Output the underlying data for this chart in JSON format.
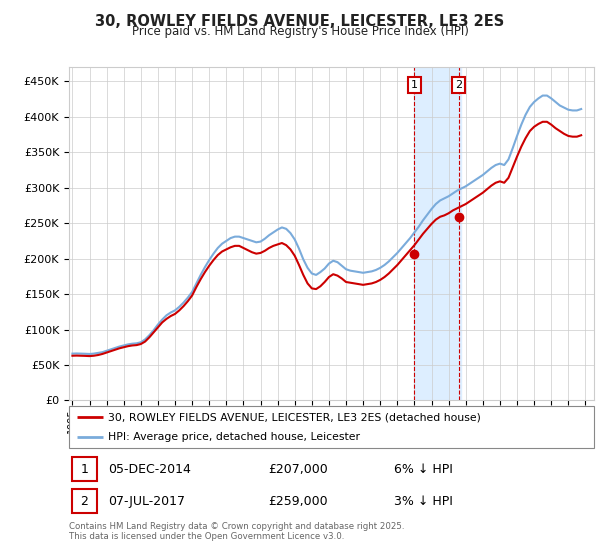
{
  "title": "30, ROWLEY FIELDS AVENUE, LEICESTER, LE3 2ES",
  "subtitle": "Price paid vs. HM Land Registry's House Price Index (HPI)",
  "ylim": [
    0,
    470000
  ],
  "ytick_values": [
    0,
    50000,
    100000,
    150000,
    200000,
    250000,
    300000,
    350000,
    400000,
    450000
  ],
  "legend_line1": "30, ROWLEY FIELDS AVENUE, LEICESTER, LE3 2ES (detached house)",
  "legend_line2": "HPI: Average price, detached house, Leicester",
  "annotation1_label": "1",
  "annotation1_date": "05-DEC-2014",
  "annotation1_price": "£207,000",
  "annotation1_hpi": "6% ↓ HPI",
  "annotation2_label": "2",
  "annotation2_date": "07-JUL-2017",
  "annotation2_price": "£259,000",
  "annotation2_hpi": "3% ↓ HPI",
  "footer": "Contains HM Land Registry data © Crown copyright and database right 2025.\nThis data is licensed under the Open Government Licence v3.0.",
  "hpi_color": "#7aabdb",
  "price_color": "#cc0000",
  "highlight_color": "#ddeeff",
  "background_color": "#ffffff",
  "grid_color": "#cccccc",
  "annotation_box_color": "#cc0000",
  "purchase1_date": 2015.0,
  "purchase1_price": 207000,
  "purchase2_date": 2017.58,
  "purchase2_price": 259000,
  "highlight_start": 2015.0,
  "highlight_end": 2017.75,
  "xmin": 1994.8,
  "xmax": 2025.5,
  "xticks": [
    1995,
    1996,
    1997,
    1998,
    1999,
    2000,
    2001,
    2002,
    2003,
    2004,
    2005,
    2006,
    2007,
    2008,
    2009,
    2010,
    2011,
    2012,
    2013,
    2014,
    2015,
    2016,
    2017,
    2018,
    2019,
    2020,
    2021,
    2022,
    2023,
    2024,
    2025
  ],
  "hpi_dates": [
    1995.0,
    1995.25,
    1995.5,
    1995.75,
    1996.0,
    1996.25,
    1996.5,
    1996.75,
    1997.0,
    1997.25,
    1997.5,
    1997.75,
    1998.0,
    1998.25,
    1998.5,
    1998.75,
    1999.0,
    1999.25,
    1999.5,
    1999.75,
    2000.0,
    2000.25,
    2000.5,
    2000.75,
    2001.0,
    2001.25,
    2001.5,
    2001.75,
    2002.0,
    2002.25,
    2002.5,
    2002.75,
    2003.0,
    2003.25,
    2003.5,
    2003.75,
    2004.0,
    2004.25,
    2004.5,
    2004.75,
    2005.0,
    2005.25,
    2005.5,
    2005.75,
    2006.0,
    2006.25,
    2006.5,
    2006.75,
    2007.0,
    2007.25,
    2007.5,
    2007.75,
    2008.0,
    2008.25,
    2008.5,
    2008.75,
    2009.0,
    2009.25,
    2009.5,
    2009.75,
    2010.0,
    2010.25,
    2010.5,
    2010.75,
    2011.0,
    2011.25,
    2011.5,
    2011.75,
    2012.0,
    2012.25,
    2012.5,
    2012.75,
    2013.0,
    2013.25,
    2013.5,
    2013.75,
    2014.0,
    2014.25,
    2014.5,
    2014.75,
    2015.0,
    2015.25,
    2015.5,
    2015.75,
    2016.0,
    2016.25,
    2016.5,
    2016.75,
    2017.0,
    2017.25,
    2017.5,
    2017.75,
    2018.0,
    2018.25,
    2018.5,
    2018.75,
    2019.0,
    2019.25,
    2019.5,
    2019.75,
    2020.0,
    2020.25,
    2020.5,
    2020.75,
    2021.0,
    2021.25,
    2021.5,
    2021.75,
    2022.0,
    2022.25,
    2022.5,
    2022.75,
    2023.0,
    2023.25,
    2023.5,
    2023.75,
    2024.0,
    2024.25,
    2024.5,
    2024.75
  ],
  "hpi_vals": [
    66000,
    66200,
    66000,
    65800,
    65500,
    66000,
    67000,
    68000,
    70000,
    72000,
    74000,
    76000,
    77500,
    79000,
    80000,
    80500,
    82000,
    86000,
    92000,
    99000,
    107000,
    114000,
    120000,
    124000,
    127000,
    132000,
    138000,
    145000,
    153000,
    165000,
    177000,
    188000,
    198000,
    207000,
    215000,
    221000,
    225000,
    229000,
    231000,
    231000,
    229000,
    227000,
    225000,
    223000,
    224000,
    228000,
    233000,
    237000,
    241000,
    244000,
    242000,
    236000,
    227000,
    214000,
    199000,
    187000,
    179000,
    177000,
    181000,
    186000,
    193000,
    197000,
    195000,
    190000,
    185000,
    183000,
    182000,
    181000,
    180000,
    181000,
    182000,
    184000,
    187000,
    191000,
    196000,
    202000,
    208000,
    215000,
    222000,
    229000,
    237000,
    245000,
    254000,
    262000,
    270000,
    277000,
    282000,
    285000,
    288000,
    292000,
    296000,
    299000,
    302000,
    306000,
    310000,
    314000,
    318000,
    323000,
    328000,
    332000,
    334000,
    332000,
    340000,
    356000,
    373000,
    389000,
    403000,
    414000,
    421000,
    426000,
    430000,
    430000,
    426000,
    421000,
    416000,
    413000,
    410000,
    409000,
    409000,
    411000
  ],
  "pp_dates": [
    1995.0,
    1995.25,
    1995.5,
    1995.75,
    1996.0,
    1996.25,
    1996.5,
    1996.75,
    1997.0,
    1997.25,
    1997.5,
    1997.75,
    1998.0,
    1998.25,
    1998.5,
    1998.75,
    1999.0,
    1999.25,
    1999.5,
    1999.75,
    2000.0,
    2000.25,
    2000.5,
    2000.75,
    2001.0,
    2001.25,
    2001.5,
    2001.75,
    2002.0,
    2002.25,
    2002.5,
    2002.75,
    2003.0,
    2003.25,
    2003.5,
    2003.75,
    2004.0,
    2004.25,
    2004.5,
    2004.75,
    2005.0,
    2005.25,
    2005.5,
    2005.75,
    2006.0,
    2006.25,
    2006.5,
    2006.75,
    2007.0,
    2007.25,
    2007.5,
    2007.75,
    2008.0,
    2008.25,
    2008.5,
    2008.75,
    2009.0,
    2009.25,
    2009.5,
    2009.75,
    2010.0,
    2010.25,
    2010.5,
    2010.75,
    2011.0,
    2011.25,
    2011.5,
    2011.75,
    2012.0,
    2012.25,
    2012.5,
    2012.75,
    2013.0,
    2013.25,
    2013.5,
    2013.75,
    2014.0,
    2014.25,
    2014.5,
    2014.75,
    2015.0,
    2015.25,
    2015.5,
    2015.75,
    2016.0,
    2016.25,
    2016.5,
    2016.75,
    2017.0,
    2017.25,
    2017.5,
    2017.75,
    2018.0,
    2018.25,
    2018.5,
    2018.75,
    2019.0,
    2019.25,
    2019.5,
    2019.75,
    2020.0,
    2020.25,
    2020.5,
    2020.75,
    2021.0,
    2021.25,
    2021.5,
    2021.75,
    2022.0,
    2022.25,
    2022.5,
    2022.75,
    2023.0,
    2023.25,
    2023.5,
    2023.75,
    2024.0,
    2024.25,
    2024.5,
    2024.75
  ],
  "pp_vals": [
    63000,
    63200,
    63000,
    62800,
    62500,
    63000,
    64000,
    65500,
    67500,
    69500,
    71500,
    73500,
    75000,
    76500,
    77500,
    78000,
    79500,
    83000,
    89000,
    96000,
    103000,
    110000,
    115000,
    119000,
    122000,
    127000,
    133000,
    140000,
    148000,
    160000,
    171000,
    181000,
    190000,
    198000,
    205000,
    210000,
    213000,
    216000,
    218000,
    218000,
    215000,
    212000,
    209000,
    207000,
    208000,
    211000,
    215000,
    218000,
    220000,
    222000,
    219000,
    213000,
    204000,
    191000,
    177000,
    165000,
    158000,
    157000,
    161000,
    167000,
    174000,
    178000,
    176000,
    172000,
    167000,
    166000,
    165000,
    164000,
    163000,
    164000,
    165000,
    167000,
    170000,
    174000,
    179000,
    185000,
    191000,
    198000,
    205000,
    212000,
    219000,
    227000,
    235000,
    242000,
    249000,
    255000,
    259000,
    261000,
    264000,
    268000,
    271000,
    274000,
    277000,
    281000,
    285000,
    289000,
    293000,
    298000,
    303000,
    307000,
    309000,
    307000,
    314000,
    329000,
    344000,
    358000,
    370000,
    380000,
    386000,
    390000,
    393000,
    393000,
    389000,
    384000,
    380000,
    376000,
    373000,
    372000,
    372000,
    374000
  ]
}
